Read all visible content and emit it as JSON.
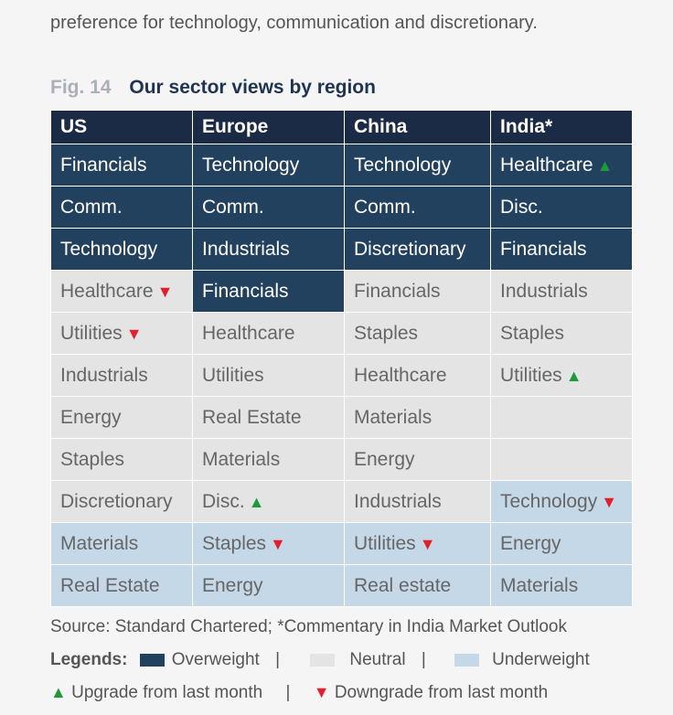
{
  "intro": {
    "line2": "preference for technology, communication and discretionary."
  },
  "figure": {
    "number": "Fig. 14",
    "title": "Our sector views by region"
  },
  "table": {
    "headers": [
      "US",
      "Europe",
      "China",
      "India*"
    ],
    "rows": [
      [
        {
          "t": "Financials",
          "v": "ow"
        },
        {
          "t": "Technology",
          "v": "ow"
        },
        {
          "t": "Technology",
          "v": "ow"
        },
        {
          "t": "Healthcare",
          "v": "ow",
          "a": "up"
        }
      ],
      [
        {
          "t": "Comm.",
          "v": "ow"
        },
        {
          "t": "Comm.",
          "v": "ow"
        },
        {
          "t": "Comm.",
          "v": "ow"
        },
        {
          "t": "Disc.",
          "v": "ow"
        }
      ],
      [
        {
          "t": "Technology",
          "v": "ow"
        },
        {
          "t": "Industrials",
          "v": "ow"
        },
        {
          "t": "Discretionary",
          "v": "ow"
        },
        {
          "t": "Financials",
          "v": "ow"
        }
      ],
      [
        {
          "t": "Healthcare",
          "v": "nt",
          "a": "down"
        },
        {
          "t": "Financials",
          "v": "ow"
        },
        {
          "t": "Financials",
          "v": "nt"
        },
        {
          "t": "Industrials",
          "v": "nt"
        }
      ],
      [
        {
          "t": "Utilities",
          "v": "nt",
          "a": "down"
        },
        {
          "t": "Healthcare",
          "v": "nt"
        },
        {
          "t": "Staples",
          "v": "nt"
        },
        {
          "t": "Staples",
          "v": "nt"
        }
      ],
      [
        {
          "t": "Industrials",
          "v": "nt"
        },
        {
          "t": "Utilities",
          "v": "nt"
        },
        {
          "t": "Healthcare",
          "v": "nt"
        },
        {
          "t": "Utilities",
          "v": "nt",
          "a": "up"
        }
      ],
      [
        {
          "t": "Energy",
          "v": "nt"
        },
        {
          "t": "Real Estate",
          "v": "nt"
        },
        {
          "t": "Materials",
          "v": "nt"
        },
        {
          "t": "",
          "v": "em"
        }
      ],
      [
        {
          "t": "Staples",
          "v": "nt"
        },
        {
          "t": "Materials",
          "v": "nt"
        },
        {
          "t": "Energy",
          "v": "nt"
        },
        {
          "t": "",
          "v": "em"
        }
      ],
      [
        {
          "t": "Discretionary",
          "v": "nt"
        },
        {
          "t": "Disc.",
          "v": "nt",
          "a": "up"
        },
        {
          "t": "Industrials",
          "v": "nt"
        },
        {
          "t": "Technology",
          "v": "uw",
          "a": "down"
        }
      ],
      [
        {
          "t": "Materials",
          "v": "uw"
        },
        {
          "t": "Staples",
          "v": "uw",
          "a": "down"
        },
        {
          "t": "Utilities",
          "v": "uw",
          "a": "down"
        },
        {
          "t": "Energy",
          "v": "uw"
        }
      ],
      [
        {
          "t": "Real Estate",
          "v": "uw"
        },
        {
          "t": "Energy",
          "v": "uw"
        },
        {
          "t": "Real estate",
          "v": "uw"
        },
        {
          "t": "Materials",
          "v": "uw"
        }
      ]
    ]
  },
  "source": "Source: Standard Chartered; *Commentary in India Market Outlook",
  "legend": {
    "label": "Legends:",
    "overweight": "Overweight",
    "neutral": "Neutral",
    "underweight": "Underweight",
    "separator": "|",
    "upgrade": "Upgrade from last month",
    "downgrade": "Downgrade from last month",
    "up_glyph": "▲",
    "down_glyph": "▼"
  },
  "colors": {
    "overweight": "#22415f",
    "neutral": "#e4e4e4",
    "underweight": "#c5d8e8",
    "up_arrow": "#1f9a3a",
    "down_arrow": "#e0202c"
  }
}
